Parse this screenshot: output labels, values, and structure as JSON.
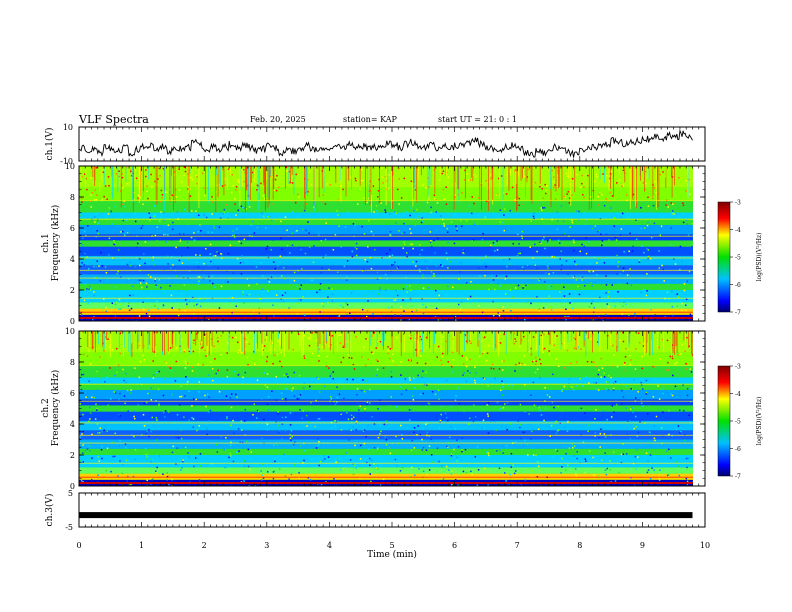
{
  "header": {
    "title": "VLF Spectra",
    "date": "Feb. 20, 2025",
    "station": "station= KAP",
    "start": "start  UT  =   21: 0   : 1"
  },
  "chart_data": [
    {
      "type": "line",
      "panel": "ch1-waveform",
      "ylabel": "ch.1(V)",
      "ylim": [
        -10,
        10
      ],
      "yticklabels": [
        "10",
        "-10"
      ],
      "xlim": [
        0,
        10
      ],
      "note_values": "trace sampled every 0.1 min (0.0 to 9.8)",
      "x_step": 0.1,
      "values": [
        -2,
        -4,
        -3,
        -5,
        -1,
        -3,
        -4,
        -2,
        -6,
        -3,
        -2,
        -1,
        -3,
        -1,
        -4,
        -2,
        -3,
        -2,
        1,
        -1,
        -3,
        -2,
        -4,
        -2,
        0,
        -3,
        -1,
        -2,
        -4,
        -3,
        -1,
        -2,
        -5,
        -3,
        -4,
        -2,
        -1,
        -3,
        -4,
        -2,
        -3,
        -1,
        -2,
        0,
        -2,
        -1,
        -3,
        -2,
        -1,
        0,
        -1,
        -2,
        0,
        1,
        -1,
        -2,
        0,
        -3,
        -1,
        -2,
        -1,
        0,
        1,
        2,
        0,
        -2,
        -3,
        -4,
        -2,
        -1,
        -3,
        -5,
        -6,
        -4,
        -5,
        -3,
        -2,
        -4,
        -5,
        -6,
        -4,
        -3,
        -2,
        -1,
        0,
        2,
        1,
        0,
        1,
        2,
        3,
        2,
        4,
        3,
        5,
        4,
        6,
        5,
        4
      ]
    },
    {
      "type": "heatmap",
      "panel": "ch1-spectrogram",
      "ylabel": "ch.1 Frequency (kHz)",
      "ylim": [
        0,
        10
      ],
      "yticks": [
        0,
        2,
        4,
        6,
        8,
        10
      ],
      "xlim": [
        0,
        10
      ]
    },
    {
      "type": "heatmap",
      "panel": "ch2-spectrogram",
      "ylabel": "ch.2 Frequency (kHz)",
      "ylim": [
        0,
        10
      ],
      "yticks": [
        0,
        2,
        4,
        6,
        8,
        10
      ],
      "xlim": [
        0,
        10
      ]
    },
    {
      "type": "line",
      "panel": "ch3-waveform",
      "ylabel": "ch.3(V)",
      "ylim": [
        -5,
        5
      ],
      "yticklabels": [
        "5",
        "-5"
      ],
      "xlim": [
        0,
        10
      ],
      "xticks": [
        0,
        1,
        2,
        3,
        4,
        5,
        6,
        7,
        8,
        9,
        10
      ],
      "xlabel": "Time  (min)",
      "constant_value": -1.5
    }
  ],
  "colorbars": [
    {
      "label": "log(PSD)(V²/Hz)",
      "ticks": [
        "-3",
        "-4",
        "-5",
        "-6",
        "-7"
      ],
      "range": [
        -7,
        -3
      ]
    },
    {
      "label": "log(PSD)(V²/Hz)",
      "ticks": [
        "-3",
        "-4",
        "-5",
        "-6",
        "-7"
      ],
      "range": [
        -7,
        -3
      ]
    }
  ],
  "colors": {
    "low": "#0000ff",
    "mid": "#00e000",
    "high": "#ff0000",
    "top": "#800000"
  }
}
